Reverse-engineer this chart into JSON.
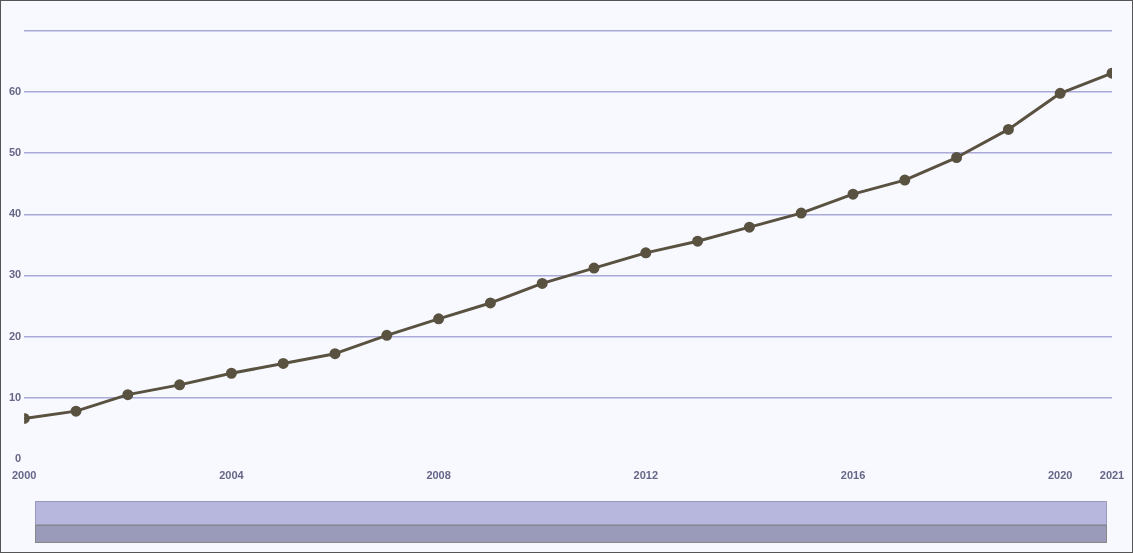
{
  "chart_data": {
    "type": "line",
    "x": [
      2000,
      2001,
      2002,
      2003,
      2004,
      2005,
      2006,
      2007,
      2008,
      2009,
      2010,
      2011,
      2012,
      2013,
      2014,
      2015,
      2016,
      2017,
      2018,
      2019,
      2020,
      2021
    ],
    "series": [
      {
        "color": "#5a5241",
        "values": [
          6.6,
          7.8,
          10.5,
          12.1,
          14.0,
          15.6,
          17.2,
          20.2,
          22.9,
          25.5,
          28.7,
          31.2,
          33.7,
          35.6,
          37.9,
          40.2,
          43.3,
          45.6,
          49.3,
          53.9,
          59.8,
          63.1
        ]
      }
    ],
    "xlim": [
      2000,
      2021
    ],
    "xticks": [
      2000,
      2004,
      2008,
      2012,
      2016,
      2020,
      2021
    ],
    "ylim": [
      0,
      70
    ],
    "yticks": [
      0,
      10,
      20,
      30,
      40,
      50,
      60,
      {
        "value": 70,
        "label": null
      }
    ],
    "grid": "y",
    "legend": false,
    "marker": "circle",
    "line_style": "solid"
  }
}
